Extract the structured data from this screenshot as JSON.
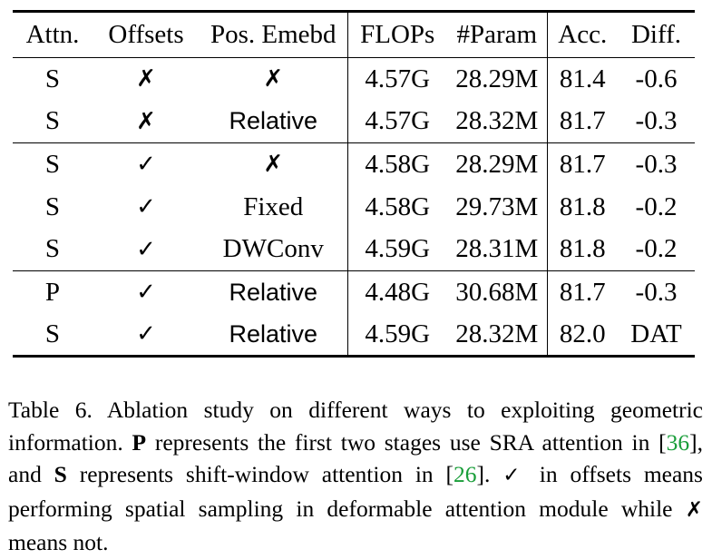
{
  "table": {
    "headers": [
      "Attn.",
      "Offsets",
      "Pos. Emebd",
      "FLOPs",
      "#Param",
      "Acc.",
      "Diff."
    ],
    "rows": [
      {
        "attn": "S",
        "offsets": "✗",
        "pos": "✗",
        "pos_bold": false,
        "flops": "4.57G",
        "param": "28.29M",
        "acc": "81.4",
        "diff": "-0.6"
      },
      {
        "attn": "S",
        "offsets": "✗",
        "pos": "Relative",
        "pos_bold": true,
        "flops": "4.57G",
        "param": "28.32M",
        "acc": "81.7",
        "diff": "-0.3"
      },
      {
        "attn": "S",
        "offsets": "✓",
        "pos": "✗",
        "pos_bold": false,
        "flops": "4.58G",
        "param": "28.29M",
        "acc": "81.7",
        "diff": "-0.3"
      },
      {
        "attn": "S",
        "offsets": "✓",
        "pos": "Fixed",
        "pos_bold": false,
        "flops": "4.58G",
        "param": "29.73M",
        "acc": "81.8",
        "diff": "-0.2"
      },
      {
        "attn": "S",
        "offsets": "✓",
        "pos": "DWConv",
        "pos_bold": false,
        "flops": "4.59G",
        "param": "28.31M",
        "acc": "81.8",
        "diff": "-0.2"
      },
      {
        "attn": "P",
        "offsets": "✓",
        "pos": "Relative",
        "pos_bold": true,
        "flops": "4.48G",
        "param": "30.68M",
        "acc": "81.7",
        "diff": "-0.3"
      },
      {
        "attn": "S",
        "offsets": "✓",
        "pos": "Relative",
        "pos_bold": true,
        "flops": "4.59G",
        "param": "28.32M",
        "acc": "82.0",
        "diff": "DAT"
      }
    ]
  },
  "caption": {
    "p1": "Table 6. Ablation study on different ways to exploiting geometric information. ",
    "bold_p": "P",
    "p2": " represents the first two stages use SRA attention in [",
    "cite1": "36",
    "p3": "], and ",
    "bold_s": "S",
    "p4": " represents shift-window attention in [",
    "cite2": "26",
    "p5": "]. ",
    "check": "✓",
    "p6": " in offsets means performing spatial sampling in deformable attention module while ",
    "cross": "✗",
    "p7": " means not."
  },
  "colors": {
    "citation": "#1a9e3a",
    "text": "#000000"
  }
}
